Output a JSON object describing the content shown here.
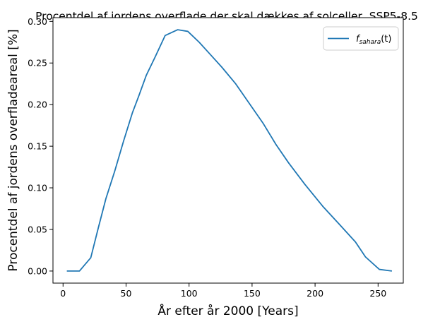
{
  "chart_data": {
    "type": "line",
    "title": "Procentdel af jordens overflade der skal dækkes af solceller, SSP5-8.5",
    "xlabel": "År efter år 2000 [Years]",
    "ylabel": "Procentdel af jordens overfladeareal [%]",
    "xlim": [
      -8,
      270
    ],
    "ylim": [
      -0.0145,
      0.3045
    ],
    "xticks": [
      0,
      50,
      100,
      150,
      200,
      250
    ],
    "xtick_labels": [
      "0",
      "50",
      "100",
      "150",
      "200",
      "250"
    ],
    "yticks": [
      0.0,
      0.05,
      0.1,
      0.15,
      0.2,
      0.25,
      0.3
    ],
    "ytick_labels": [
      "0.00",
      "0.05",
      "0.10",
      "0.15",
      "0.20",
      "0.25",
      "0.30"
    ],
    "grid": false,
    "legend_position": "top-right",
    "series": [
      {
        "name": "f_sahara(t)",
        "legend_base": "f",
        "legend_sub": "sahara",
        "legend_suffix": "(t)",
        "color": "#1f77b4",
        "x": [
          3,
          13,
          22,
          28,
          34,
          41,
          48,
          55,
          60,
          66,
          73,
          81,
          91,
          99,
          108,
          117,
          126,
          137,
          148,
          159,
          169,
          179,
          192,
          206,
          220,
          232,
          240,
          251,
          261
        ],
        "y": [
          0.0,
          0.0,
          0.016,
          0.052,
          0.087,
          0.12,
          0.156,
          0.19,
          0.21,
          0.235,
          0.257,
          0.283,
          0.29,
          0.288,
          0.275,
          0.26,
          0.245,
          0.225,
          0.201,
          0.177,
          0.152,
          0.13,
          0.104,
          0.078,
          0.055,
          0.035,
          0.017,
          0.002,
          0.0
        ]
      }
    ]
  }
}
